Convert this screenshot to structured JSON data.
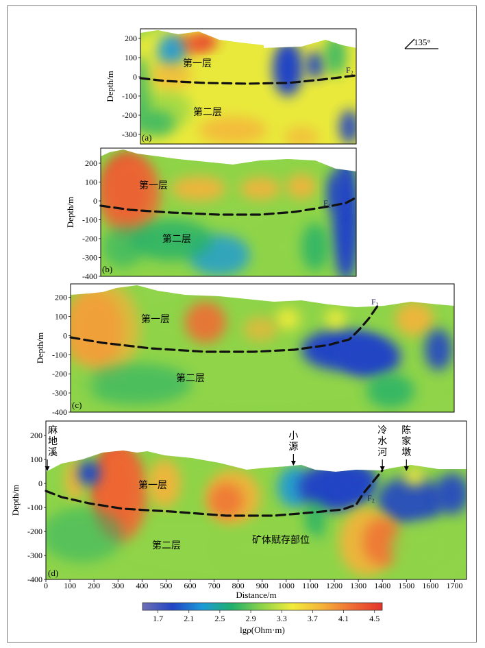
{
  "azimuth_label": "135°",
  "colorbar": {
    "ticks": [
      "1.7",
      "2.1",
      "2.5",
      "2.9",
      "3.3",
      "3.7",
      "4.1",
      "4.5"
    ],
    "label": "lgρ(Ohm·m)",
    "colors": [
      "#6e6fb5",
      "#2244c4",
      "#1a9ad8",
      "#21b06a",
      "#8fd44a",
      "#f3ec3a",
      "#f5b23a",
      "#ef6d34",
      "#e3332a"
    ]
  },
  "chart_data": [
    {
      "type": "heatmap",
      "panel": "(a)",
      "ylabel": "Depth/m",
      "y_ticks": [
        "200",
        "100",
        "0",
        "-100",
        "-200",
        "-300"
      ],
      "ylim": [
        -350,
        250
      ],
      "layer_labels": [
        "第一层",
        "第二层"
      ],
      "fault_label": "F₂"
    },
    {
      "type": "heatmap",
      "panel": "(b)",
      "ylabel": "Depth/m",
      "y_ticks": [
        "200",
        "100",
        "0",
        "-100",
        "-200",
        "-300",
        "-400"
      ],
      "ylim": [
        -400,
        280
      ],
      "layer_labels": [
        "第一层",
        "第二层"
      ],
      "fault_label": "F₂"
    },
    {
      "type": "heatmap",
      "panel": "(c)",
      "ylabel": "Depth/m",
      "y_ticks": [
        "200",
        "100",
        "0",
        "-100",
        "-200",
        "-300",
        "-400"
      ],
      "ylim": [
        -400,
        270
      ],
      "layer_labels": [
        "第一层",
        "第二层"
      ],
      "fault_label": "F₂"
    },
    {
      "type": "heatmap",
      "panel": "(d)",
      "xlabel": "Distance/m",
      "ylabel": "Depth/m",
      "x_ticks": [
        "0",
        "100",
        "200",
        "300",
        "400",
        "500",
        "600",
        "700",
        "800",
        "900",
        "1000",
        "1100",
        "1200",
        "1300",
        "1400",
        "1500",
        "1600",
        "1700"
      ],
      "xlim": [
        0,
        1750
      ],
      "y_ticks": [
        "200",
        "100",
        "0",
        "-100",
        "-200",
        "-300",
        "-400"
      ],
      "ylim": [
        -400,
        260
      ],
      "layer_labels": [
        "第一层",
        "第二层"
      ],
      "ore_label": "矿体赋存部位",
      "fault_label": "F₂",
      "places": [
        {
          "name": "麻地溪",
          "x": 0
        },
        {
          "name": "小源",
          "x": 1030
        },
        {
          "name": "冷水河",
          "x": 1400
        },
        {
          "name": "陈家墩",
          "x": 1500
        }
      ]
    }
  ]
}
